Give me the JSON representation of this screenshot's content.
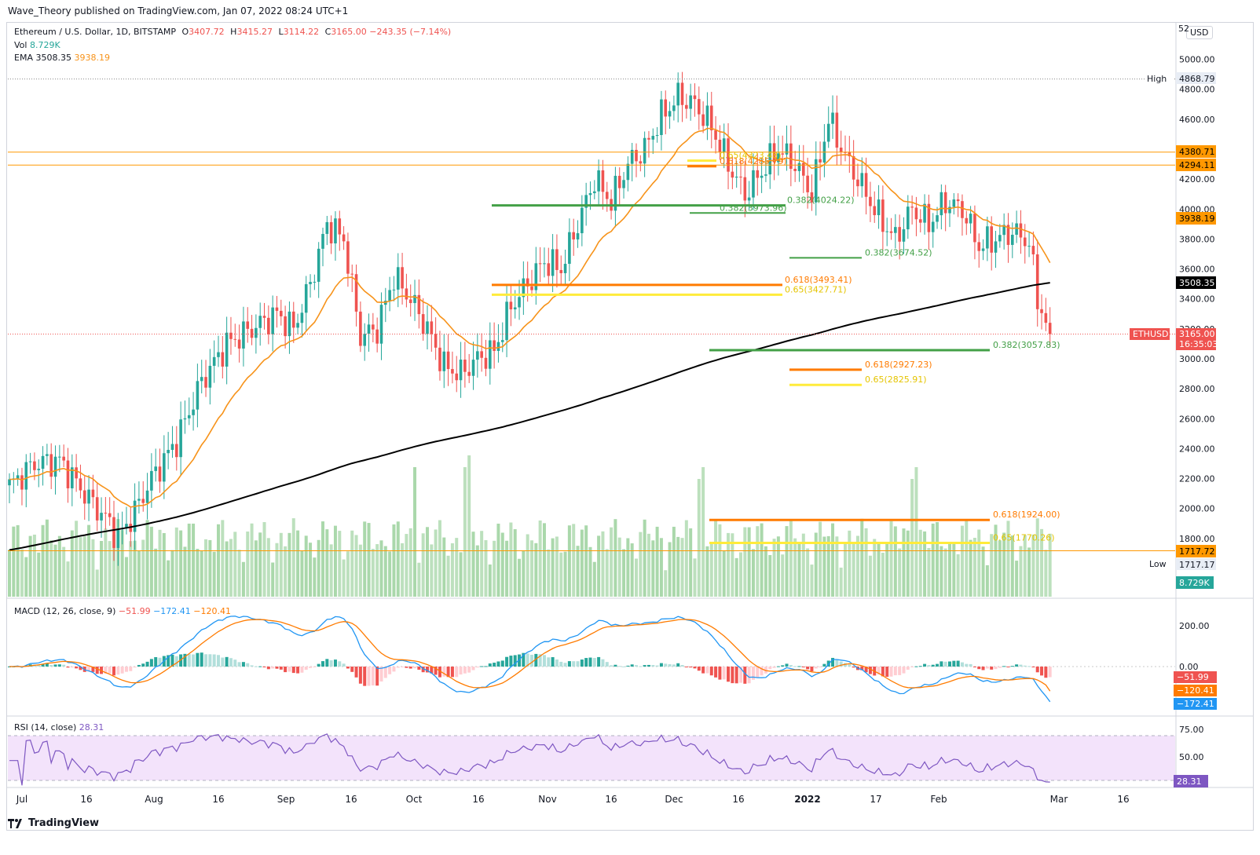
{
  "header": {
    "published_line": "Wave_Theory published on TradingView.com, Jan 07, 2022 08:24 UTC+1"
  },
  "legend": {
    "symbol": "Ethereum / U.S. Dollar, 1D, BITSTAMP",
    "o_label": "O",
    "o_value": "3407.72",
    "h_label": "H",
    "h_value": "3415.27",
    "l_label": "L",
    "l_value": "3114.22",
    "c_label": "C",
    "c_value": "3165.00",
    "change": "−243.35 (−7.14%)",
    "vol_label": "Vol",
    "vol_value": "8.729K",
    "ema_label": "EMA",
    "ema_value1": "3508.35",
    "ema_value2": "3938.19",
    "macd_label": "MACD (12, 26, close, 9)",
    "macd_v1": "−51.99",
    "macd_v2": "−172.41",
    "macd_v3": "−120.41",
    "rsi_label": "RSI (14, close)",
    "rsi_value": "28.31"
  },
  "currency_button": "USD",
  "price_axis": {
    "ticks": [
      "5000.00",
      "4800.00",
      "4600.00",
      "4400.00",
      "4200.00",
      "4000.00",
      "3800.00",
      "3600.00",
      "3400.00",
      "3200.00",
      "3000.00",
      "2800.00",
      "2600.00",
      "2400.00",
      "2200.00",
      "2000.00",
      "1800.00"
    ],
    "top_partial": "52",
    "high_label": "High",
    "high_value": "4868.79",
    "low_label": "Low",
    "low_value": "1717.17",
    "tag_4380": "4380.71",
    "tag_4294": "4294.11",
    "tag_3938": "3938.19",
    "tag_3508": "3508.35",
    "symbol_tag": "ETHUSD",
    "last_price": "3165.00",
    "countdown": "16:35:03",
    "tag_1717": "1717.72",
    "vol_tag": "8.729K"
  },
  "macd_axis": {
    "ticks": [
      "200.00",
      "0.00"
    ],
    "tag1": "−51.99",
    "tag2": "−120.41",
    "tag3": "−172.41"
  },
  "rsi_axis": {
    "ticks": [
      "75.00",
      "50.00"
    ],
    "tag": "28.31"
  },
  "time_axis": [
    "Jul",
    "16",
    "Aug",
    "16",
    "Sep",
    "16",
    "Oct",
    "16",
    "Nov",
    "16",
    "Dec",
    "16",
    "2022",
    "17",
    "Feb",
    "Mar",
    "16"
  ],
  "fib_labels": {
    "f1": "0.618(4285.79)",
    "f2": "0.65(4323.48)",
    "f3": "0.382(4024.22)",
    "f4": "0.382(3973.96)",
    "f5": "0.382(3674.52)",
    "f6": "0.618(3493.41)",
    "f7": "0.65(3427.71)",
    "f8": "0.382(3057.83)",
    "f9": "0.618(2927.23)",
    "f10": "0.65(2825.91)",
    "f11": "0.618(1924.00)",
    "f12": "0.65(1770.26)"
  },
  "colors": {
    "up": "#26a69a",
    "down": "#ef5350",
    "ema_fast": "#f7931a",
    "ema_slow": "#000000",
    "fib_green": "#43a047",
    "fib_orange": "#ff7b00",
    "fib_yellow": "#ffeb3b",
    "rsi": "#7e57c2",
    "macd": "#2196f3",
    "signal": "#ff7b00"
  },
  "footer": {
    "brand": "TradingView"
  },
  "chart_data": {
    "type": "candlestick",
    "symbol": "ETHUSD",
    "timeframe": "1D",
    "price_range": [
      1700,
      5200
    ],
    "last": {
      "open": 3407.72,
      "high": 3415.27,
      "low": 3114.22,
      "close": 3165.0
    },
    "high_marker": 4868.79,
    "low_marker": 1717.17,
    "horizontal_levels": [
      4380.71,
      4294.11,
      1717.72
    ],
    "ema": {
      "ema_fast_last": 3938.19,
      "ema_slow_last": 3508.35
    },
    "close_series_approx": [
      {
        "month": "Jul",
        "close": 2000
      },
      {
        "month": "Aug",
        "close": 2600
      },
      {
        "month": "Sep",
        "close": 3500
      },
      {
        "month": "Oct",
        "close": 3000
      },
      {
        "month": "Nov",
        "close": 4300
      },
      {
        "month": "Dec",
        "close": 4600
      },
      {
        "month": "2022",
        "close": 3700
      },
      {
        "month": "Jan 07",
        "close": 3165
      }
    ],
    "fib_levels": [
      {
        "label": "0.618",
        "value": 4285.79
      },
      {
        "label": "0.65",
        "value": 4323.48
      },
      {
        "label": "0.382",
        "value": 4024.22
      },
      {
        "label": "0.382",
        "value": 3973.96
      },
      {
        "label": "0.382",
        "value": 3674.52
      },
      {
        "label": "0.618",
        "value": 3493.41
      },
      {
        "label": "0.65",
        "value": 3427.71
      },
      {
        "label": "0.382",
        "value": 3057.83
      },
      {
        "label": "0.618",
        "value": 2927.23
      },
      {
        "label": "0.65",
        "value": 2825.91
      },
      {
        "label": "0.618",
        "value": 1924.0
      },
      {
        "label": "0.65",
        "value": 1770.26
      }
    ],
    "macd": {
      "histogram": -51.99,
      "macd": -172.41,
      "signal": -120.41
    },
    "rsi": {
      "value": 28.31,
      "upper": 75,
      "lower": 30
    }
  }
}
